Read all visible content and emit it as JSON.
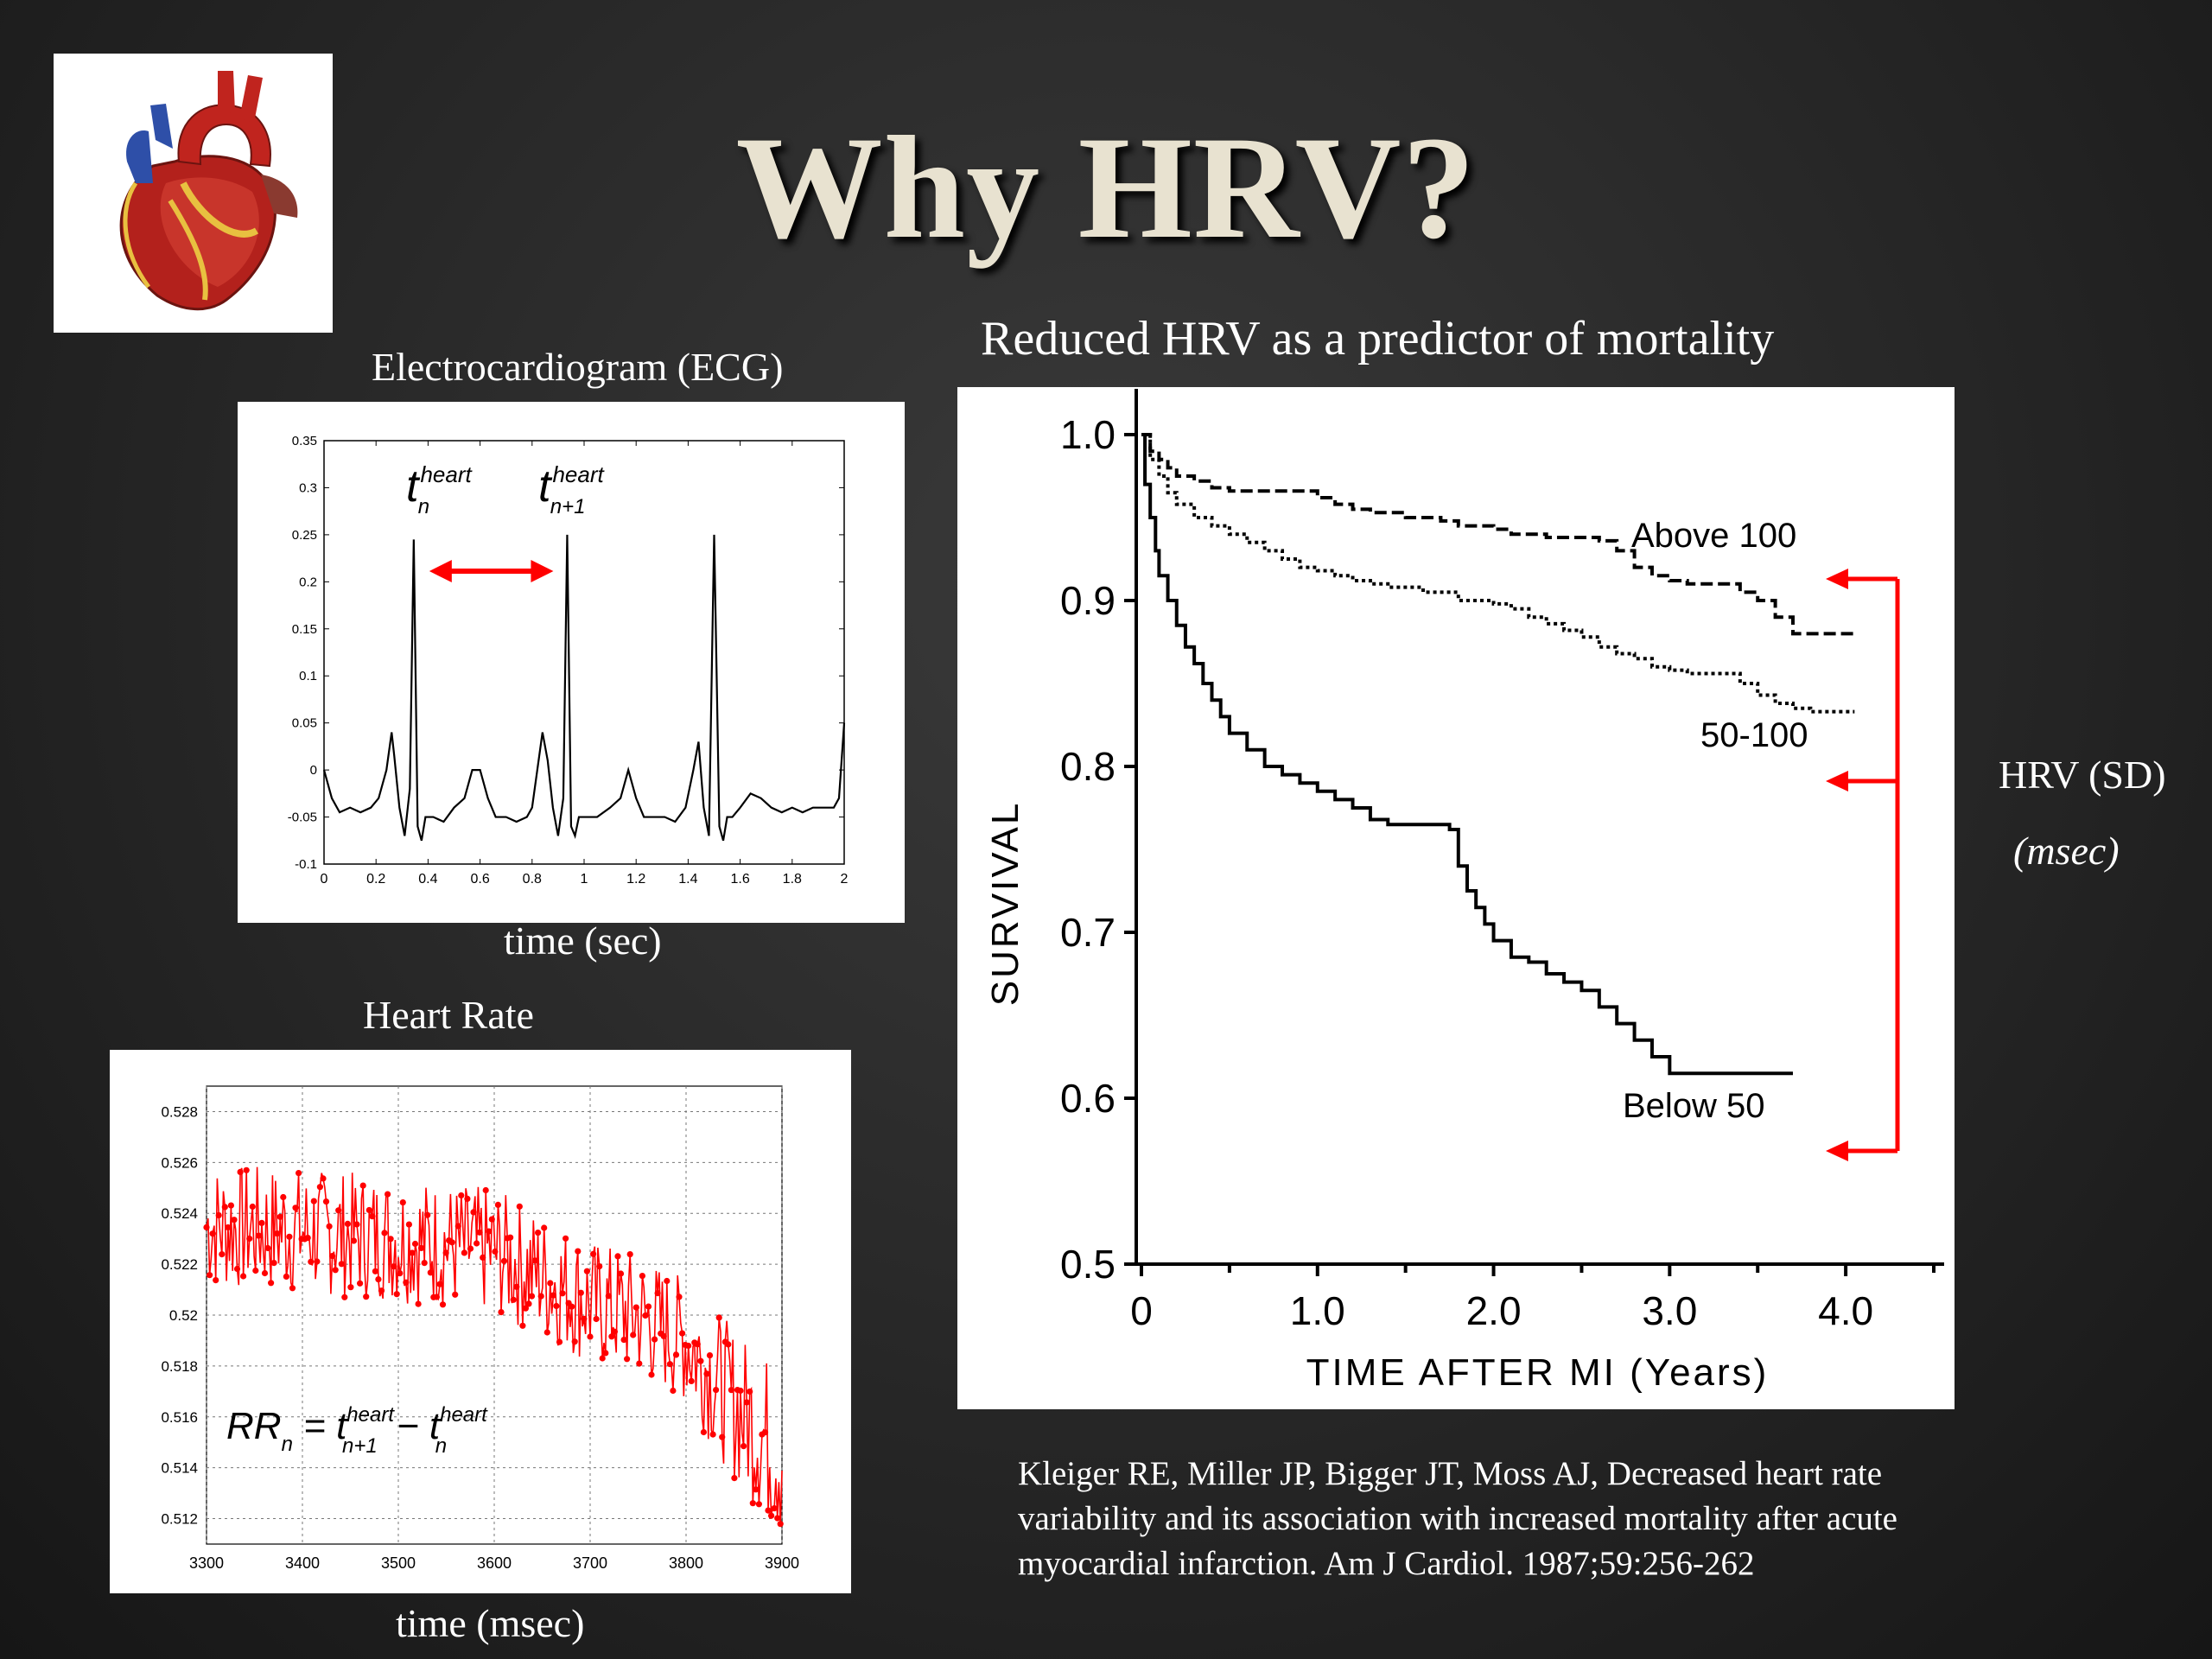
{
  "slide": {
    "title": "Why HRV?"
  },
  "ecg": {
    "caption": "Electrocardiogram (ECG)",
    "xlabel": "time (sec)",
    "label_tn": "t",
    "label_tn_sup": "heart",
    "label_tn_sub": "n",
    "label_tn1": "t",
    "label_tn1_sup": "heart",
    "label_tn1_sub": "n+1"
  },
  "heart_rate": {
    "caption": "Heart Rate",
    "xlabel": "time (msec)",
    "formula_lhs": "RR",
    "formula_lhs_sub": "n",
    "formula_eq": "= t",
    "formula_sup1": "heart",
    "formula_sub1": "n+1",
    "formula_minus": "− t",
    "formula_sup2": "heart",
    "formula_sub2": "n"
  },
  "mortality": {
    "caption": "Reduced HRV as a predictor of mortality",
    "legend_title": "HRV (SD)",
    "legend_unit": "(msec)"
  },
  "citation": "Kleiger RE, Miller JP, Bigger JT, Moss AJ, Decreased heart rate variability and its association with increased mortality after acute myocardial infarction. Am J Cardiol. 1987;59:256-262",
  "colors": {
    "accent": "#ff0000",
    "title": "#e8e2d0"
  },
  "chart_data": [
    {
      "type": "line",
      "name": "ecg",
      "xlim": [
        0,
        2
      ],
      "ylim": [
        -0.1,
        0.35
      ],
      "xticks": [
        "0",
        "0.2",
        "0.4",
        "0.6",
        "0.8",
        "1",
        "1.2",
        "1.4",
        "1.6",
        "1.8",
        "2"
      ],
      "yticks": [
        "-0.1",
        "-0.05",
        "0",
        "0.05",
        "0.1",
        "0.15",
        "0.2",
        "0.25",
        "0.3",
        "0.35"
      ],
      "x": [
        0,
        0.03,
        0.06,
        0.1,
        0.14,
        0.18,
        0.21,
        0.24,
        0.26,
        0.27,
        0.29,
        0.31,
        0.33,
        0.345,
        0.36,
        0.375,
        0.39,
        0.42,
        0.46,
        0.5,
        0.54,
        0.57,
        0.6,
        0.63,
        0.66,
        0.7,
        0.74,
        0.78,
        0.8,
        0.82,
        0.84,
        0.86,
        0.88,
        0.9,
        0.92,
        0.935,
        0.95,
        0.965,
        0.98,
        1.01,
        1.05,
        1.1,
        1.14,
        1.17,
        1.2,
        1.23,
        1.27,
        1.31,
        1.35,
        1.39,
        1.42,
        1.44,
        1.46,
        1.48,
        1.5,
        1.52,
        1.535,
        1.55,
        1.57,
        1.6,
        1.64,
        1.68,
        1.72,
        1.76,
        1.8,
        1.84,
        1.88,
        1.92,
        1.96,
        1.98,
        2.0
      ],
      "y": [
        0,
        -0.03,
        -0.045,
        -0.04,
        -0.045,
        -0.04,
        -0.03,
        0,
        0.04,
        0.015,
        -0.04,
        -0.07,
        -0.02,
        0.245,
        -0.06,
        -0.075,
        -0.05,
        -0.05,
        -0.055,
        -0.04,
        -0.03,
        0,
        0,
        -0.03,
        -0.05,
        -0.05,
        -0.055,
        -0.05,
        -0.04,
        0,
        0.04,
        0.01,
        -0.04,
        -0.07,
        -0.03,
        0.25,
        -0.06,
        -0.07,
        -0.05,
        -0.05,
        -0.05,
        -0.04,
        -0.03,
        0,
        -0.03,
        -0.05,
        -0.05,
        -0.05,
        -0.055,
        -0.04,
        0,
        0.03,
        -0.04,
        -0.07,
        0.25,
        -0.06,
        -0.075,
        -0.05,
        -0.05,
        -0.04,
        -0.025,
        -0.03,
        -0.04,
        -0.045,
        -0.04,
        -0.045,
        -0.04,
        -0.04,
        -0.04,
        -0.03,
        0.05
      ],
      "annotations": [
        "t_n^heart",
        "t_(n+1)^heart"
      ]
    },
    {
      "type": "line",
      "name": "rr_series",
      "xlim": [
        3300,
        3900
      ],
      "ylim": [
        0.511,
        0.529
      ],
      "xticks": [
        "3300",
        "3400",
        "3500",
        "3600",
        "3700",
        "3800",
        "3900"
      ],
      "yticks": [
        "0.512",
        "0.514",
        "0.516",
        "0.518",
        "0.52",
        "0.522",
        "0.524",
        "0.526",
        "0.528"
      ],
      "grid": true,
      "trend": {
        "x": [
          3300,
          3400,
          3500,
          3600,
          3650,
          3700,
          3750,
          3800,
          3850,
          3900
        ],
        "mean": [
          0.5235,
          0.5233,
          0.523,
          0.5225,
          0.5215,
          0.5205,
          0.52,
          0.519,
          0.5165,
          0.5145
        ],
        "spread": [
          0.0025,
          0.0025,
          0.0025,
          0.0025,
          0.0025,
          0.0025,
          0.0025,
          0.0025,
          0.003,
          0.0035
        ]
      }
    },
    {
      "type": "line",
      "name": "kaplan_meier",
      "title": "Reduced HRV as a predictor of mortality",
      "xlabel": "TIME AFTER MI (Years)",
      "ylabel": "SURVIVAL",
      "xlim": [
        0,
        4.5
      ],
      "ylim": [
        0.5,
        1.0
      ],
      "xticks": [
        "0",
        "1.0",
        "2.0",
        "3.0",
        "4.0"
      ],
      "yticks": [
        "0.5",
        "0.6",
        "0.7",
        "0.8",
        "0.9",
        "1.0"
      ],
      "series": [
        {
          "name": "Above 100",
          "style": "dashed",
          "x": [
            0,
            0.05,
            0.1,
            0.15,
            0.2,
            0.3,
            0.4,
            0.5,
            0.6,
            0.8,
            1.0,
            1.1,
            1.2,
            1.3,
            1.5,
            1.7,
            1.8,
            2.0,
            2.1,
            2.3,
            2.4,
            2.6,
            2.7,
            2.8,
            2.9,
            3.0,
            3.1,
            3.2,
            3.3,
            3.4,
            3.5,
            3.6,
            3.7,
            3.8,
            4.0,
            4.05
          ],
          "y": [
            1.0,
            0.99,
            0.985,
            0.98,
            0.975,
            0.972,
            0.968,
            0.966,
            0.966,
            0.966,
            0.962,
            0.958,
            0.955,
            0.953,
            0.95,
            0.948,
            0.945,
            0.943,
            0.94,
            0.938,
            0.938,
            0.936,
            0.93,
            0.92,
            0.915,
            0.912,
            0.91,
            0.91,
            0.91,
            0.905,
            0.9,
            0.89,
            0.88,
            0.88,
            0.88,
            0.88
          ]
        },
        {
          "name": "50-100",
          "style": "dotted",
          "x": [
            0,
            0.05,
            0.1,
            0.15,
            0.2,
            0.3,
            0.4,
            0.5,
            0.6,
            0.7,
            0.8,
            0.9,
            1.0,
            1.1,
            1.2,
            1.3,
            1.4,
            1.6,
            1.8,
            2.0,
            2.1,
            2.2,
            2.3,
            2.4,
            2.5,
            2.6,
            2.7,
            2.8,
            2.9,
            3.0,
            3.1,
            3.2,
            3.3,
            3.4,
            3.5,
            3.6,
            3.7,
            3.8,
            4.0,
            4.05
          ],
          "y": [
            1.0,
            0.985,
            0.975,
            0.965,
            0.958,
            0.95,
            0.945,
            0.94,
            0.935,
            0.93,
            0.925,
            0.92,
            0.918,
            0.915,
            0.912,
            0.91,
            0.908,
            0.905,
            0.9,
            0.898,
            0.895,
            0.89,
            0.886,
            0.882,
            0.878,
            0.872,
            0.868,
            0.865,
            0.86,
            0.858,
            0.856,
            0.856,
            0.856,
            0.85,
            0.843,
            0.838,
            0.835,
            0.833,
            0.833,
            0.833
          ]
        },
        {
          "name": "Below 50",
          "style": "solid",
          "x": [
            0,
            0.02,
            0.05,
            0.08,
            0.1,
            0.15,
            0.2,
            0.25,
            0.3,
            0.35,
            0.4,
            0.45,
            0.5,
            0.6,
            0.7,
            0.8,
            0.9,
            1.0,
            1.1,
            1.2,
            1.3,
            1.4,
            1.5,
            1.6,
            1.7,
            1.75,
            1.8,
            1.85,
            1.9,
            1.95,
            2.0,
            2.1,
            2.2,
            2.3,
            2.4,
            2.5,
            2.6,
            2.7,
            2.8,
            2.9,
            3.0,
            3.5,
            3.7
          ],
          "y": [
            1.0,
            0.97,
            0.95,
            0.93,
            0.915,
            0.9,
            0.885,
            0.872,
            0.862,
            0.85,
            0.84,
            0.83,
            0.82,
            0.81,
            0.8,
            0.795,
            0.79,
            0.785,
            0.78,
            0.775,
            0.768,
            0.765,
            0.765,
            0.765,
            0.765,
            0.762,
            0.74,
            0.725,
            0.715,
            0.705,
            0.695,
            0.685,
            0.682,
            0.675,
            0.67,
            0.665,
            0.655,
            0.645,
            0.635,
            0.625,
            0.615,
            0.615,
            0.615
          ]
        }
      ],
      "series_labels": [
        "Above 100",
        "50-100",
        "Below 50"
      ]
    }
  ]
}
